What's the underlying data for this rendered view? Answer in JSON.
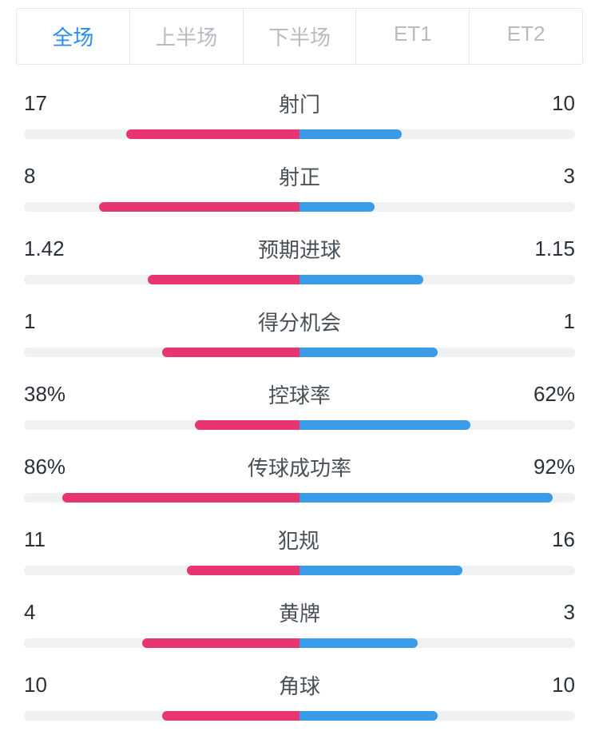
{
  "colors": {
    "left": "#e6356f",
    "right": "#3a9ce8",
    "track": "#f0f1f3",
    "tab_active": "#2a8cf0",
    "tab_inactive": "#b8bcc2",
    "text": "#2a3038",
    "label_text": "#4a5058"
  },
  "tabs": [
    {
      "label": "全场",
      "active": true
    },
    {
      "label": "上半场",
      "active": false
    },
    {
      "label": "下半场",
      "active": false
    },
    {
      "label": "ET1",
      "active": false
    },
    {
      "label": "ET2",
      "active": false
    }
  ],
  "bar_half_max_pct": 50,
  "stats": [
    {
      "label": "射门",
      "left_val": "17",
      "right_val": "10",
      "left_pct": 31.5,
      "right_pct": 18.5
    },
    {
      "label": "射正",
      "left_val": "8",
      "right_val": "3",
      "left_pct": 36.4,
      "right_pct": 13.6
    },
    {
      "label": "预期进球",
      "left_val": "1.42",
      "right_val": "1.15",
      "left_pct": 27.6,
      "right_pct": 22.4
    },
    {
      "label": "得分机会",
      "left_val": "1",
      "right_val": "1",
      "left_pct": 25.0,
      "right_pct": 25.0
    },
    {
      "label": "控球率",
      "left_val": "38%",
      "right_val": "62%",
      "left_pct": 19.0,
      "right_pct": 31.0
    },
    {
      "label": "传球成功率",
      "left_val": "86%",
      "right_val": "92%",
      "left_pct": 43.0,
      "right_pct": 46.0
    },
    {
      "label": "犯规",
      "left_val": "11",
      "right_val": "16",
      "left_pct": 20.4,
      "right_pct": 29.6
    },
    {
      "label": "黄牌",
      "left_val": "4",
      "right_val": "3",
      "left_pct": 28.6,
      "right_pct": 21.4
    },
    {
      "label": "角球",
      "left_val": "10",
      "right_val": "10",
      "left_pct": 25.0,
      "right_pct": 25.0
    }
  ]
}
